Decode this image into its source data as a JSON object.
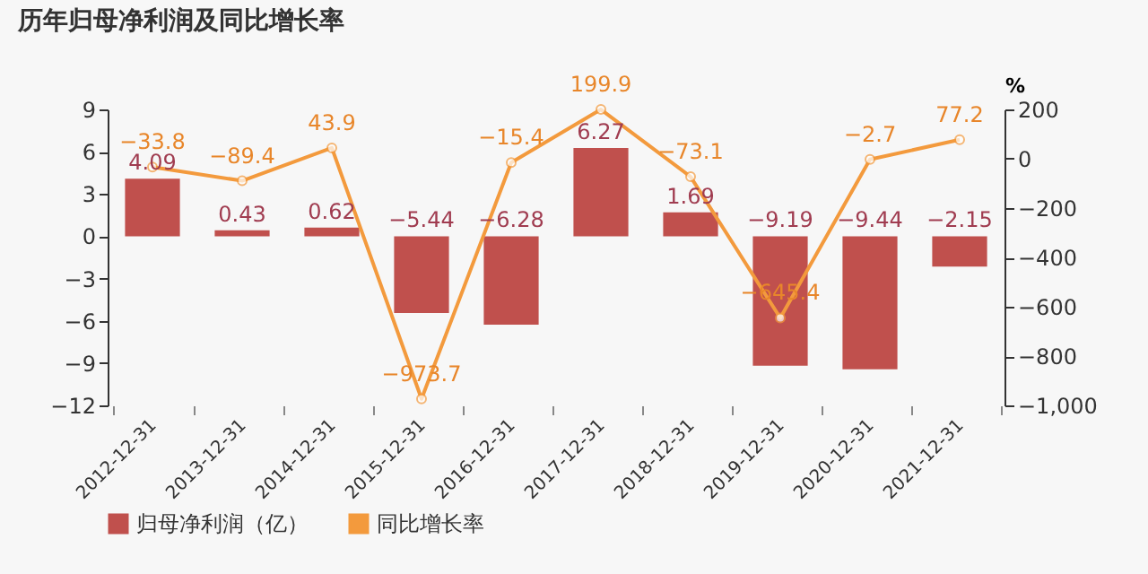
{
  "chart_data": {
    "type": "bar",
    "title": "历年归母净利润及同比增长率",
    "categories": [
      "2012-12-31",
      "2013-12-31",
      "2014-12-31",
      "2015-12-31",
      "2016-12-31",
      "2017-12-31",
      "2018-12-31",
      "2019-12-31",
      "2020-12-31",
      "2021-12-31"
    ],
    "series": [
      {
        "name": "归母净利润（亿）",
        "color": "#c0504d",
        "values": [
          4.09,
          0.43,
          0.62,
          -5.44,
          -6.28,
          6.27,
          1.69,
          -9.19,
          -9.44,
          -2.15
        ]
      },
      {
        "name": "同比增长率",
        "type": "line",
        "axis": "y2",
        "color": "#f39a3d",
        "values": [
          -33.8,
          -89.4,
          43.9,
          -973.7,
          -15.4,
          199.9,
          -73.1,
          -645.4,
          -2.7,
          77.2
        ]
      }
    ],
    "ylim": [
      -12,
      9
    ],
    "yticks": [
      -12,
      -9,
      -6,
      -3,
      0,
      3,
      6,
      9
    ],
    "y2label": "%",
    "y2lim": [
      -1000,
      200
    ],
    "y2ticks": [
      {
        "value": -1000,
        "label": "−1,000"
      },
      -800,
      -600,
      -400,
      -200,
      0,
      200
    ],
    "data_labels": true,
    "legend": "bottom",
    "marker": "circle",
    "grid": false
  }
}
